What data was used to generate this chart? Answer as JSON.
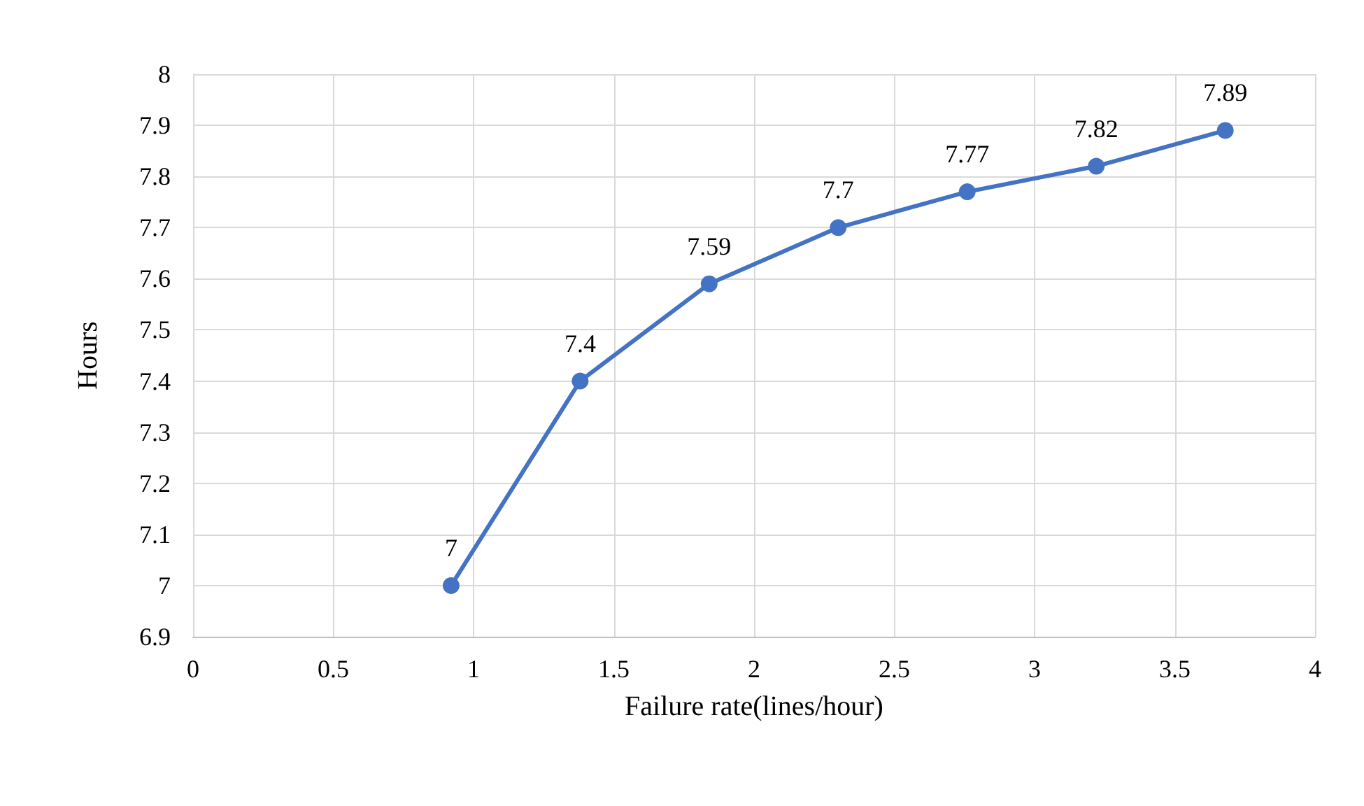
{
  "chart_data": {
    "type": "line",
    "xlabel": "Failure rate(lines/hour)",
    "ylabel": "Hours",
    "x": [
      0.92,
      1.38,
      1.84,
      2.3,
      2.76,
      3.22,
      3.68
    ],
    "series": [
      {
        "color": "#4472c4",
        "values": [
          7,
          7.4,
          7.59,
          7.7,
          7.77,
          7.82,
          7.89
        ]
      }
    ],
    "xlim": [
      0,
      4
    ],
    "xticks": [
      0,
      0.5,
      1,
      1.5,
      2,
      2.5,
      3,
      3.5,
      4
    ],
    "ylim": [
      6.9,
      8
    ],
    "yticks": [
      6.9,
      7,
      7.1,
      7.2,
      7.3,
      7.4,
      7.5,
      7.6,
      7.7,
      7.8,
      7.9,
      8
    ],
    "grid": true,
    "marker": "circle",
    "line_style": "solid",
    "data_labels": true
  }
}
